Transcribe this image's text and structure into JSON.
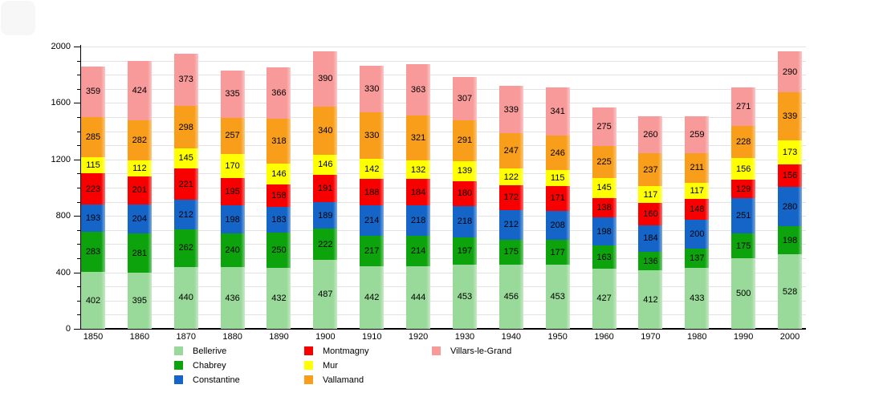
{
  "chart_data": {
    "type": "bar",
    "stacked": true,
    "title": "",
    "xlabel": "",
    "ylabel": "",
    "categories": [
      "1850",
      "1860",
      "1870",
      "1880",
      "1890",
      "1900",
      "1910",
      "1920",
      "1930",
      "1940",
      "1950",
      "1960",
      "1970",
      "1980",
      "1990",
      "2000"
    ],
    "series": [
      {
        "name": "Bellerive",
        "color": "#99d999",
        "values": [
          402,
          395,
          440,
          436,
          432,
          487,
          442,
          444,
          453,
          456,
          453,
          427,
          412,
          433,
          500,
          528
        ]
      },
      {
        "name": "Chabrey",
        "color": "#0ca30c",
        "values": [
          283,
          281,
          262,
          240,
          250,
          222,
          217,
          214,
          197,
          175,
          177,
          163,
          136,
          137,
          175,
          198
        ]
      },
      {
        "name": "Constantine",
        "color": "#1565c8",
        "values": [
          193,
          204,
          212,
          198,
          183,
          189,
          214,
          218,
          218,
          212,
          208,
          198,
          184,
          200,
          251,
          280
        ]
      },
      {
        "name": "Montmagny",
        "color": "#f90000",
        "values": [
          223,
          201,
          221,
          195,
          158,
          191,
          188,
          184,
          180,
          172,
          171,
          138,
          160,
          148,
          129,
          156
        ]
      },
      {
        "name": "Mur",
        "color": "#ffff00",
        "values": [
          115,
          112,
          145,
          170,
          146,
          146,
          142,
          132,
          139,
          122,
          115,
          145,
          117,
          117,
          156,
          173
        ]
      },
      {
        "name": "Vallamand",
        "color": "#f99e1b",
        "values": [
          285,
          282,
          298,
          257,
          318,
          340,
          330,
          321,
          291,
          247,
          246,
          225,
          237,
          211,
          228,
          339
        ]
      },
      {
        "name": "Villars-le-Grand",
        "color": "#f89a9a",
        "values": [
          359,
          424,
          373,
          335,
          366,
          390,
          330,
          363,
          307,
          339,
          341,
          275,
          260,
          259,
          271,
          290
        ]
      }
    ],
    "y_axis": {
      "min": 0,
      "max": 2000,
      "major_tick_step": 400,
      "minor_grid_step": 100,
      "tick_labels": [
        "0",
        "400",
        "800",
        "1200",
        "1600",
        "2000"
      ]
    },
    "legend": {
      "position": "bottom",
      "items_per_column": 3,
      "entries": [
        "Bellerive",
        "Chabrey",
        "Constantine",
        "Montmagny",
        "Mur",
        "Vallamand",
        "Villars-le-Grand"
      ]
    },
    "grid": true,
    "value_labels_shown": true
  },
  "colors": {
    "background": "#ffffff",
    "gridline": "#e2e2e2",
    "axis": "#000000",
    "text": "#000000"
  }
}
